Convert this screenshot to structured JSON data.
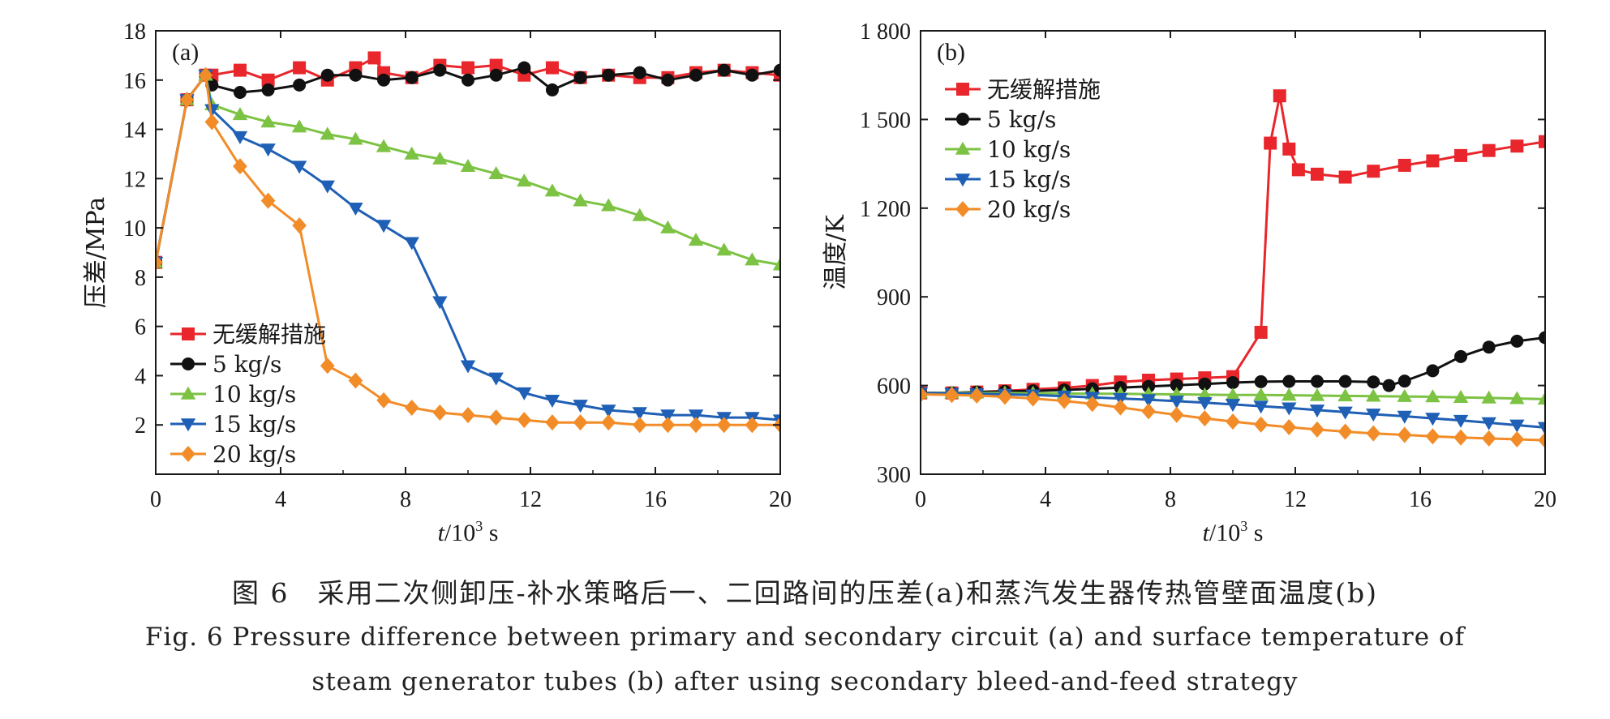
{
  "chart_data": [
    {
      "type": "line",
      "panel_label": "(a)",
      "xlabel_italic": "t",
      "xlabel_rest": "/10",
      "xlabel_sup": "3",
      "xlabel_unit": " s",
      "ylabel": "压差/MPa",
      "xlim": [
        0,
        20
      ],
      "ylim": [
        0,
        18
      ],
      "xticks": [
        0,
        4,
        8,
        12,
        16,
        20
      ],
      "xtick_labels": [
        "0",
        "4",
        "8",
        "12",
        "16",
        "20"
      ],
      "yticks": [
        2,
        4,
        6,
        8,
        10,
        12,
        14,
        16,
        18
      ],
      "ytick_labels": [
        "2",
        "4",
        "6",
        "8",
        "10",
        "12",
        "14",
        "16",
        "18"
      ],
      "legend_position": "bottom-left",
      "series": [
        {
          "name": "无缓解措施",
          "color": "#e8262b",
          "marker": "square",
          "x": [
            0,
            1,
            1.6,
            1.8,
            2.7,
            3.6,
            4.6,
            5.5,
            6.4,
            7,
            7.3,
            8.2,
            9.1,
            10,
            10.9,
            11.8,
            12.7,
            13.6,
            14.5,
            15.5,
            16.4,
            17.3,
            18.2,
            19.1,
            20
          ],
          "y": [
            8.6,
            15.2,
            16.2,
            16.2,
            16.4,
            16.0,
            16.5,
            16.0,
            16.5,
            16.9,
            16.3,
            16.1,
            16.6,
            16.5,
            16.6,
            16.2,
            16.5,
            16.1,
            16.2,
            16.1,
            16.1,
            16.3,
            16.4,
            16.3,
            16.2
          ]
        },
        {
          "name": "5 kg/s",
          "color": "#111111",
          "marker": "circle",
          "x": [
            0,
            1,
            1.6,
            1.8,
            2.7,
            3.6,
            4.6,
            5.5,
            6.4,
            7.3,
            8.2,
            9.1,
            10,
            10.9,
            11.8,
            12.7,
            13.6,
            14.5,
            15.5,
            16.4,
            17.3,
            18.2,
            19.1,
            20
          ],
          "y": [
            8.6,
            15.2,
            16.2,
            15.8,
            15.5,
            15.6,
            15.8,
            16.2,
            16.2,
            16.0,
            16.1,
            16.4,
            16.0,
            16.2,
            16.5,
            15.6,
            16.1,
            16.2,
            16.3,
            16.0,
            16.2,
            16.4,
            16.2,
            16.4
          ]
        },
        {
          "name": "10 kg/s",
          "color": "#7cc243",
          "marker": "triangle-up",
          "x": [
            0,
            1,
            1.6,
            1.8,
            2.7,
            3.6,
            4.6,
            5.5,
            6.4,
            7.3,
            8.2,
            9.1,
            10,
            10.9,
            11.8,
            12.7,
            13.6,
            14.5,
            15.5,
            16.4,
            17.3,
            18.2,
            19.1,
            20
          ],
          "y": [
            8.6,
            15.2,
            16.2,
            15.0,
            14.6,
            14.3,
            14.1,
            13.8,
            13.6,
            13.3,
            13.0,
            12.8,
            12.5,
            12.2,
            11.9,
            11.5,
            11.1,
            10.9,
            10.5,
            10.0,
            9.5,
            9.1,
            8.7,
            8.5
          ]
        },
        {
          "name": "15 kg/s",
          "color": "#1f5fb5",
          "marker": "triangle-down",
          "x": [
            0,
            1,
            1.6,
            1.8,
            2.7,
            3.6,
            4.6,
            5.5,
            6.4,
            7.3,
            8.2,
            9.1,
            10,
            10.9,
            11.8,
            12.7,
            13.6,
            14.5,
            15.5,
            16.4,
            17.3,
            18.2,
            19.1,
            20
          ],
          "y": [
            8.6,
            15.2,
            16.2,
            14.8,
            13.7,
            13.2,
            12.5,
            11.7,
            10.8,
            10.1,
            9.4,
            7.0,
            4.4,
            3.9,
            3.3,
            3.0,
            2.8,
            2.6,
            2.5,
            2.4,
            2.4,
            2.3,
            2.3,
            2.2
          ]
        },
        {
          "name": "20 kg/s",
          "color": "#f28c28",
          "marker": "diamond",
          "x": [
            0,
            1,
            1.6,
            1.8,
            2.7,
            3.6,
            4.6,
            5.5,
            6.4,
            7.3,
            8.2,
            9.1,
            10,
            10.9,
            11.8,
            12.7,
            13.6,
            14.5,
            15.5,
            16.4,
            17.3,
            18.2,
            19.1,
            20
          ],
          "y": [
            8.6,
            15.2,
            16.2,
            14.3,
            12.5,
            11.1,
            10.1,
            4.4,
            3.8,
            3.0,
            2.7,
            2.5,
            2.4,
            2.3,
            2.2,
            2.1,
            2.1,
            2.1,
            2.0,
            2.0,
            2.0,
            2.0,
            2.0,
            2.0
          ]
        }
      ]
    },
    {
      "type": "line",
      "panel_label": "(b)",
      "xlabel_italic": "t",
      "xlabel_rest": "/10",
      "xlabel_sup": "3",
      "xlabel_unit": " s",
      "ylabel": "温度/K",
      "xlim": [
        0,
        20
      ],
      "ylim": [
        300,
        1800
      ],
      "xticks": [
        0,
        4,
        8,
        12,
        16,
        20
      ],
      "xtick_labels": [
        "0",
        "4",
        "8",
        "12",
        "16",
        "20"
      ],
      "yticks": [
        300,
        600,
        900,
        1200,
        1500,
        1800
      ],
      "ytick_labels": [
        "300",
        "600",
        "900",
        "1 200",
        "1 500",
        "1 800"
      ],
      "legend_position": "top-left",
      "series": [
        {
          "name": "无缓解措施",
          "color": "#e8262b",
          "marker": "square",
          "x": [
            0,
            1,
            1.8,
            2.7,
            3.6,
            4.6,
            5.5,
            6.4,
            7.3,
            8.2,
            9.1,
            10,
            10.9,
            11.2,
            11.5,
            11.8,
            12.1,
            12.7,
            13.6,
            14.5,
            15.5,
            16.4,
            17.3,
            18.2,
            19.1,
            20
          ],
          "y": [
            575,
            575,
            578,
            582,
            587,
            592,
            600,
            612,
            618,
            622,
            626,
            630,
            780,
            1420,
            1580,
            1400,
            1330,
            1315,
            1305,
            1325,
            1345,
            1360,
            1378,
            1395,
            1410,
            1425
          ]
        },
        {
          "name": "5 kg/s",
          "color": "#111111",
          "marker": "circle",
          "x": [
            0,
            1,
            1.8,
            2.7,
            3.6,
            4.6,
            5.5,
            6.4,
            7.3,
            8.2,
            9.1,
            10,
            10.9,
            11.8,
            12.7,
            13.6,
            14.5,
            15,
            15.5,
            16.4,
            17.3,
            18.2,
            19.1,
            20
          ],
          "y": [
            575,
            575,
            578,
            580,
            582,
            585,
            589,
            593,
            597,
            601,
            605,
            610,
            613,
            614,
            614,
            614,
            612,
            600,
            615,
            650,
            698,
            730,
            750,
            762
          ]
        },
        {
          "name": "10 kg/s",
          "color": "#7cc243",
          "marker": "triangle-up",
          "x": [
            0,
            1,
            1.8,
            2.7,
            3.6,
            4.6,
            5.5,
            6.4,
            7.3,
            8.2,
            9.1,
            10,
            10.9,
            11.8,
            12.7,
            13.6,
            14.5,
            15.5,
            16.4,
            17.3,
            18.2,
            19.1,
            20
          ],
          "y": [
            575,
            575,
            575,
            575,
            574,
            573,
            572,
            572,
            571,
            570,
            569,
            568,
            568,
            567,
            566,
            565,
            564,
            563,
            562,
            560,
            558,
            556,
            554
          ]
        },
        {
          "name": "15 kg/s",
          "color": "#1f5fb5",
          "marker": "triangle-down",
          "x": [
            0,
            1,
            1.8,
            2.7,
            3.6,
            4.6,
            5.5,
            6.4,
            7.3,
            8.2,
            9.1,
            10,
            10.9,
            11.8,
            12.7,
            13.6,
            14.5,
            15.5,
            16.4,
            17.3,
            18.2,
            19.1,
            20
          ],
          "y": [
            575,
            573,
            572,
            570,
            568,
            564,
            560,
            556,
            552,
            547,
            542,
            536,
            530,
            524,
            517,
            510,
            503,
            496,
            489,
            482,
            474,
            466,
            458
          ]
        },
        {
          "name": "20 kg/s",
          "color": "#f28c28",
          "marker": "diamond",
          "x": [
            0,
            1,
            1.8,
            2.7,
            3.6,
            4.6,
            5.5,
            6.4,
            7.3,
            8.2,
            9.1,
            10,
            10.9,
            11.8,
            12.7,
            13.6,
            14.5,
            15.5,
            16.4,
            17.3,
            18.2,
            19.1,
            20
          ],
          "y": [
            570,
            568,
            566,
            562,
            556,
            548,
            538,
            526,
            513,
            501,
            489,
            478,
            468,
            459,
            451,
            444,
            438,
            433,
            428,
            424,
            421,
            418,
            415
          ]
        }
      ]
    }
  ],
  "caption": {
    "zh": "图 6　采用二次侧卸压-补水策略后一、二回路间的压差(a)和蒸汽发生器传热管壁面温度(b)",
    "en_line1": "Fig. 6  Pressure difference between primary and secondary circuit (a) and surface temperature of",
    "en_line2": "steam generator tubes (b) after using secondary bleed-and-feed strategy"
  }
}
